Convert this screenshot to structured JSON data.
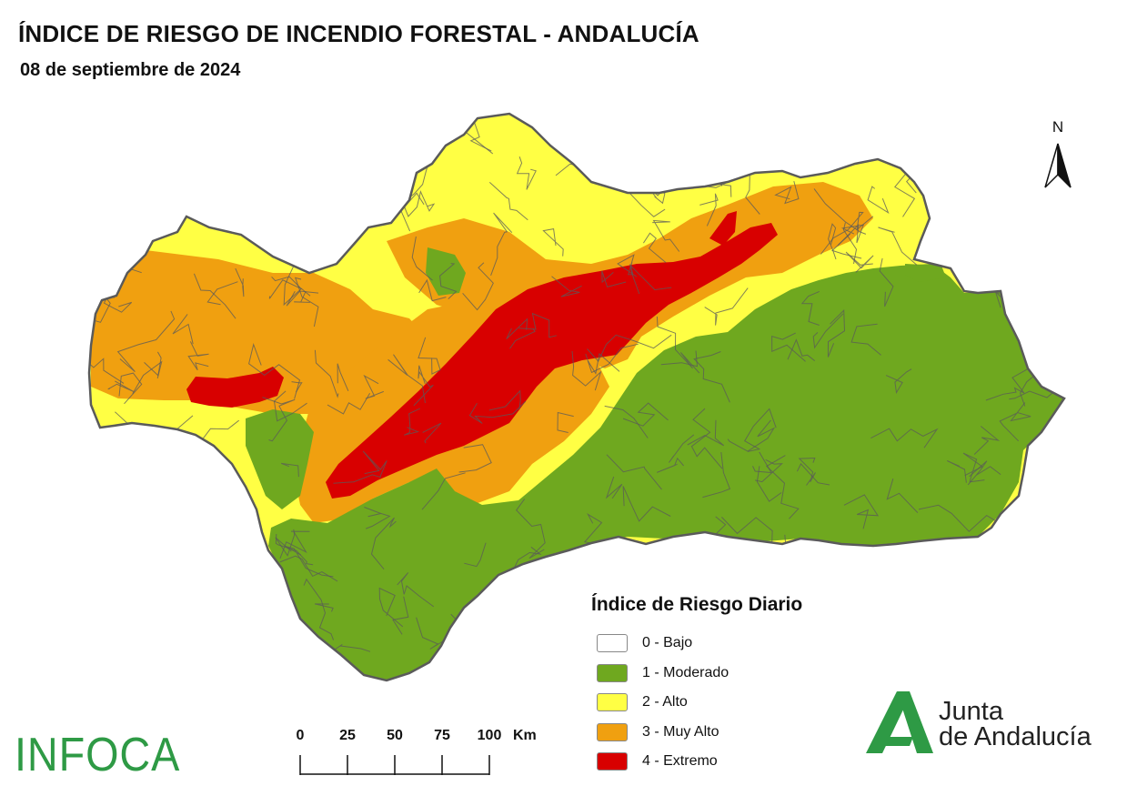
{
  "title": "ÍNDICE DE RIESGO DE INCENDIO FORESTAL - ANDALUCÍA",
  "date": "08 de septiembre de 2024",
  "north_label": "N",
  "legend": {
    "title": "Índice de Riesgo Diario",
    "items": [
      {
        "label": "0 - Bajo",
        "color": "#ffffff"
      },
      {
        "label": "1 - Moderado",
        "color": "#6fa81f"
      },
      {
        "label": "2 - Alto",
        "color": "#ffff44"
      },
      {
        "label": "3 - Muy Alto",
        "color": "#f0a010"
      },
      {
        "label": "4 - Extremo",
        "color": "#d80000"
      }
    ]
  },
  "scale_bar": {
    "ticks": [
      "0",
      "25",
      "50",
      "75",
      "100"
    ],
    "unit": "Km"
  },
  "logos": {
    "infoca": "INFOCA",
    "junta_line1": "Junta",
    "junta_line2": "de Andalucía"
  },
  "colors": {
    "border": "#5a5a5a",
    "brand_green": "#2e9a45"
  }
}
